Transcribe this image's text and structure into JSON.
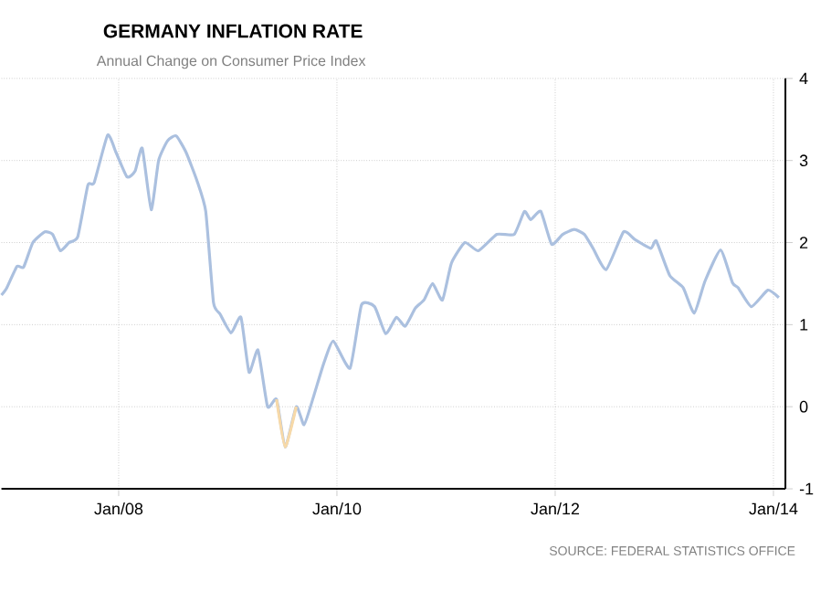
{
  "chart_data": {
    "type": "line",
    "title": "GERMANY INFLATION RATE",
    "subtitle": "Annual Change on Consumer Price Index",
    "annotations": [
      "SOURCE: FEDERAL STATISTICS OFFICE"
    ],
    "xlim": [
      "2006-12-05",
      "2014-02-10"
    ],
    "ylim": [
      -1,
      4
    ],
    "xticks": [
      {
        "value": "2008-01-01",
        "label": "Jan/08"
      },
      {
        "value": "2010-01-01",
        "label": "Jan/10"
      },
      {
        "value": "2012-01-01",
        "label": "Jan/12"
      },
      {
        "value": "2014-01-01",
        "label": "Jan/14"
      }
    ],
    "yticks": [
      -1,
      0,
      1,
      2,
      3,
      4
    ],
    "grid": true,
    "line_style": "solid",
    "series": [
      {
        "color": "#abc0df",
        "x": [
          "2006-12-05",
          "2006-12-23",
          "2007-01-26",
          "2007-02-17",
          "2007-03-20",
          "2007-04-29",
          "2007-05-25",
          "2007-06-20",
          "2007-07-19",
          "2007-08-17",
          "2007-09-20",
          "2007-10-11",
          "2007-11-25",
          "2007-12-23",
          "2008-01-29",
          "2008-02-25",
          "2008-03-20",
          "2008-04-19",
          "2008-05-14",
          "2008-06-13",
          "2008-07-12",
          "2008-08-14",
          "2008-09-20",
          "2008-10-19",
          "2008-11-14",
          "2008-12-06",
          "2009-01-12",
          "2009-02-14",
          "2009-03-13",
          "2009-04-12",
          "2009-05-14",
          "2009-06-13",
          "2009-07-12",
          "2009-08-18",
          "2009-09-13",
          "2009-10-12",
          "2009-11-18",
          "2009-12-20",
          "2010-02-14",
          "2010-03-24",
          "2010-05-07",
          "2010-06-13",
          "2010-07-19",
          "2010-08-17",
          "2010-09-20",
          "2010-10-19",
          "2010-11-17",
          "2010-12-20",
          "2011-01-19",
          "2011-03-05",
          "2011-04-19",
          "2011-06-20",
          "2011-08-17",
          "2011-09-20",
          "2011-10-11",
          "2011-11-14",
          "2011-12-20",
          "2012-01-26",
          "2012-03-05",
          "2012-04-08",
          "2012-05-07",
          "2012-06-20",
          "2012-08-17",
          "2012-09-23",
          "2012-11-17",
          "2012-12-05",
          "2013-01-19",
          "2013-03-05",
          "2013-04-11",
          "2013-05-17",
          "2013-07-08",
          "2013-08-17",
          "2013-09-05",
          "2013-10-19",
          "2013-12-13",
          "2014-01-19"
        ],
        "values": [
          1.36,
          1.45,
          1.71,
          1.7,
          2.0,
          2.13,
          2.1,
          1.9,
          2.0,
          2.07,
          2.7,
          2.73,
          3.31,
          3.1,
          2.8,
          2.87,
          3.15,
          2.4,
          3.0,
          3.24,
          3.3,
          3.1,
          2.75,
          2.38,
          1.27,
          1.13,
          0.9,
          1.09,
          0.42,
          0.69,
          0.0,
          0.09,
          -0.49,
          0.0,
          -0.22,
          0.09,
          0.53,
          0.8,
          0.47,
          1.24,
          1.22,
          0.89,
          1.09,
          0.98,
          1.2,
          1.3,
          1.5,
          1.3,
          1.75,
          2.0,
          1.9,
          2.1,
          2.1,
          2.38,
          2.28,
          2.38,
          1.98,
          2.1,
          2.16,
          2.1,
          1.93,
          1.67,
          2.13,
          2.04,
          1.93,
          2.02,
          1.6,
          1.45,
          1.14,
          1.53,
          1.91,
          1.51,
          1.45,
          1.22,
          1.42,
          1.33
        ]
      },
      {
        "color": "#f7d9a8",
        "x": [
          "2009-06-13",
          "2009-07-12",
          "2009-08-18"
        ],
        "values": [
          0.09,
          -0.49,
          0.0
        ]
      }
    ]
  }
}
